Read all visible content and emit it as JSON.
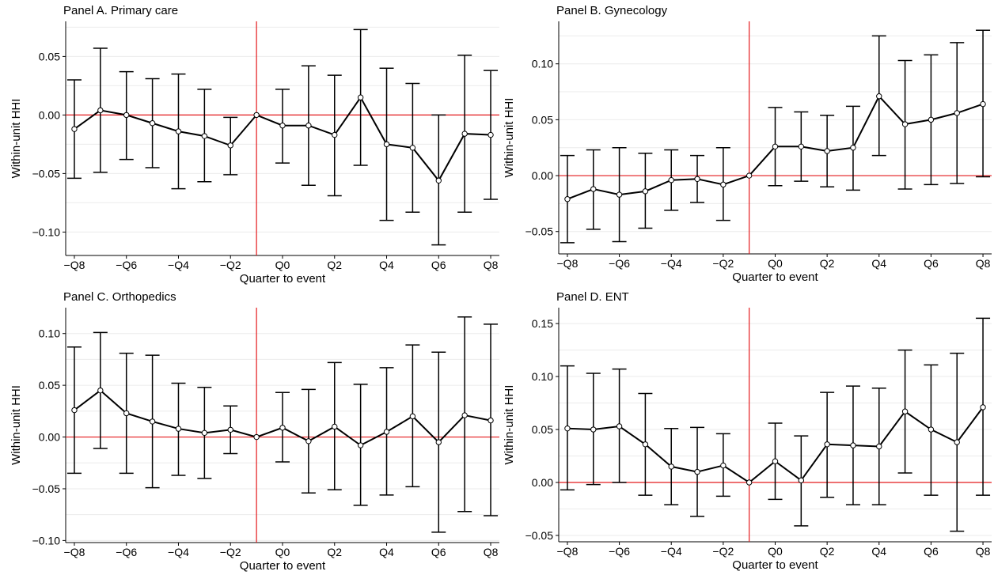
{
  "chart_data": [
    {
      "type": "line",
      "title": "Panel A. Primary care",
      "xlabel": "Quarter to event",
      "ylabel": "Within-unit HHI",
      "ylim": [
        -0.12,
        0.08
      ],
      "yticks": [
        -0.1,
        -0.05,
        0.0,
        0.05
      ],
      "ytick_labels": [
        "−0.10",
        "−0.05",
        "0.00",
        "0.05"
      ],
      "x": [
        -8,
        -7,
        -6,
        -5,
        -4,
        -3,
        -2,
        -1,
        0,
        1,
        2,
        3,
        4,
        5,
        6,
        7,
        8
      ],
      "xticks": [
        -8,
        -6,
        -4,
        -2,
        0,
        2,
        4,
        6,
        8
      ],
      "xtick_labels": [
        "−Q8",
        "−Q6",
        "−Q4",
        "−Q2",
        "Q0",
        "Q2",
        "Q4",
        "Q6",
        "Q8"
      ],
      "event_x": -1,
      "series": [
        {
          "values": [
            -0.012,
            0.004,
            0.0,
            -0.007,
            -0.014,
            -0.018,
            -0.026,
            0.0,
            -0.009,
            -0.009,
            -0.017,
            0.015,
            -0.025,
            -0.028,
            -0.056,
            -0.016,
            -0.017
          ],
          "lower": [
            -0.054,
            -0.049,
            -0.038,
            -0.045,
            -0.063,
            -0.057,
            -0.051,
            0.0,
            -0.041,
            -0.06,
            -0.069,
            -0.043,
            -0.09,
            -0.083,
            -0.111,
            -0.083,
            -0.072
          ],
          "upper": [
            0.03,
            0.057,
            0.037,
            0.031,
            0.035,
            0.022,
            -0.002,
            0.0,
            0.022,
            0.042,
            0.034,
            0.073,
            0.04,
            0.027,
            0.0,
            0.051,
            0.038
          ]
        }
      ]
    },
    {
      "type": "line",
      "title": "Panel B. Gynecology",
      "xlabel": "Quarter to event",
      "ylabel": "Within-unit HHI",
      "ylim": [
        -0.07,
        0.138
      ],
      "yticks": [
        -0.05,
        0.0,
        0.05,
        0.1
      ],
      "ytick_labels": [
        "−0.05",
        "0.00",
        "0.05",
        "0.10"
      ],
      "x": [
        -8,
        -7,
        -6,
        -5,
        -4,
        -3,
        -2,
        -1,
        0,
        1,
        2,
        3,
        4,
        5,
        6,
        7,
        8
      ],
      "xticks": [
        -8,
        -6,
        -4,
        -2,
        0,
        2,
        4,
        6,
        8
      ],
      "xtick_labels": [
        "−Q8",
        "−Q6",
        "−Q4",
        "−Q2",
        "Q0",
        "Q2",
        "Q4",
        "Q6",
        "Q8"
      ],
      "event_x": -1,
      "series": [
        {
          "values": [
            -0.021,
            -0.012,
            -0.017,
            -0.014,
            -0.004,
            -0.003,
            -0.008,
            0.0,
            0.026,
            0.026,
            0.022,
            0.025,
            0.071,
            0.046,
            0.05,
            0.056,
            0.064
          ],
          "lower": [
            -0.06,
            -0.048,
            -0.059,
            -0.047,
            -0.031,
            -0.024,
            -0.04,
            0.0,
            -0.009,
            -0.005,
            -0.01,
            -0.013,
            0.018,
            -0.012,
            -0.008,
            -0.007,
            -0.001
          ],
          "upper": [
            0.018,
            0.023,
            0.025,
            0.02,
            0.023,
            0.018,
            0.025,
            0.0,
            0.061,
            0.057,
            0.054,
            0.062,
            0.125,
            0.103,
            0.108,
            0.119,
            0.13
          ]
        }
      ]
    },
    {
      "type": "line",
      "title": "Panel C. Orthopedics",
      "xlabel": "Quarter to event",
      "ylabel": "Within-unit HHI",
      "ylim": [
        -0.102,
        0.125
      ],
      "yticks": [
        -0.1,
        -0.05,
        0.0,
        0.05,
        0.1
      ],
      "ytick_labels": [
        "−0.10",
        "−0.05",
        "0.00",
        "0.05",
        "0.10"
      ],
      "x": [
        -8,
        -7,
        -6,
        -5,
        -4,
        -3,
        -2,
        -1,
        0,
        1,
        2,
        3,
        4,
        5,
        6,
        7,
        8
      ],
      "xticks": [
        -8,
        -6,
        -4,
        -2,
        0,
        2,
        4,
        6,
        8
      ],
      "xtick_labels": [
        "−Q8",
        "−Q6",
        "−Q4",
        "−Q2",
        "Q0",
        "Q2",
        "Q4",
        "Q6",
        "Q8"
      ],
      "event_x": -1,
      "series": [
        {
          "values": [
            0.026,
            0.045,
            0.023,
            0.015,
            0.008,
            0.004,
            0.007,
            0.0,
            0.009,
            -0.004,
            0.01,
            -0.008,
            0.005,
            0.02,
            -0.005,
            0.021,
            0.016
          ],
          "lower": [
            -0.035,
            -0.011,
            -0.035,
            -0.049,
            -0.037,
            -0.04,
            -0.016,
            0.0,
            -0.024,
            -0.054,
            -0.051,
            -0.066,
            -0.056,
            -0.048,
            -0.092,
            -0.072,
            -0.076
          ],
          "upper": [
            0.087,
            0.101,
            0.081,
            0.079,
            0.052,
            0.048,
            0.03,
            0.0,
            0.043,
            0.046,
            0.072,
            0.051,
            0.067,
            0.089,
            0.082,
            0.116,
            0.109
          ]
        }
      ]
    },
    {
      "type": "line",
      "title": "Panel D. ENT",
      "xlabel": "Quarter to event",
      "ylabel": "Within-unit HHI",
      "ylim": [
        -0.056,
        0.165
      ],
      "yticks": [
        -0.05,
        0.0,
        0.05,
        0.1,
        0.15
      ],
      "ytick_labels": [
        "−0.05",
        "0.00",
        "0.05",
        "0.10",
        "0.15"
      ],
      "x": [
        -8,
        -7,
        -6,
        -5,
        -4,
        -3,
        -2,
        -1,
        0,
        1,
        2,
        3,
        4,
        5,
        6,
        7,
        8
      ],
      "xticks": [
        -8,
        -6,
        -4,
        -2,
        0,
        2,
        4,
        6,
        8
      ],
      "xtick_labels": [
        "−Q8",
        "−Q6",
        "−Q4",
        "−Q2",
        "Q0",
        "Q2",
        "Q4",
        "Q6",
        "Q8"
      ],
      "event_x": -1,
      "series": [
        {
          "values": [
            0.051,
            0.05,
            0.053,
            0.036,
            0.015,
            0.01,
            0.016,
            0.0,
            0.02,
            0.002,
            0.036,
            0.035,
            0.034,
            0.067,
            0.05,
            0.038,
            0.071
          ],
          "lower": [
            -0.007,
            -0.002,
            0.0,
            -0.012,
            -0.021,
            -0.032,
            -0.013,
            0.0,
            -0.016,
            -0.041,
            -0.014,
            -0.021,
            -0.021,
            0.009,
            -0.012,
            -0.046,
            -0.012
          ],
          "upper": [
            0.11,
            0.103,
            0.107,
            0.084,
            0.051,
            0.052,
            0.046,
            0.0,
            0.056,
            0.044,
            0.085,
            0.091,
            0.089,
            0.125,
            0.111,
            0.122,
            0.155
          ]
        }
      ]
    }
  ],
  "colors": {
    "reference_line": "#e41a1c",
    "series": "#000000",
    "grid": "#ebebeb"
  }
}
